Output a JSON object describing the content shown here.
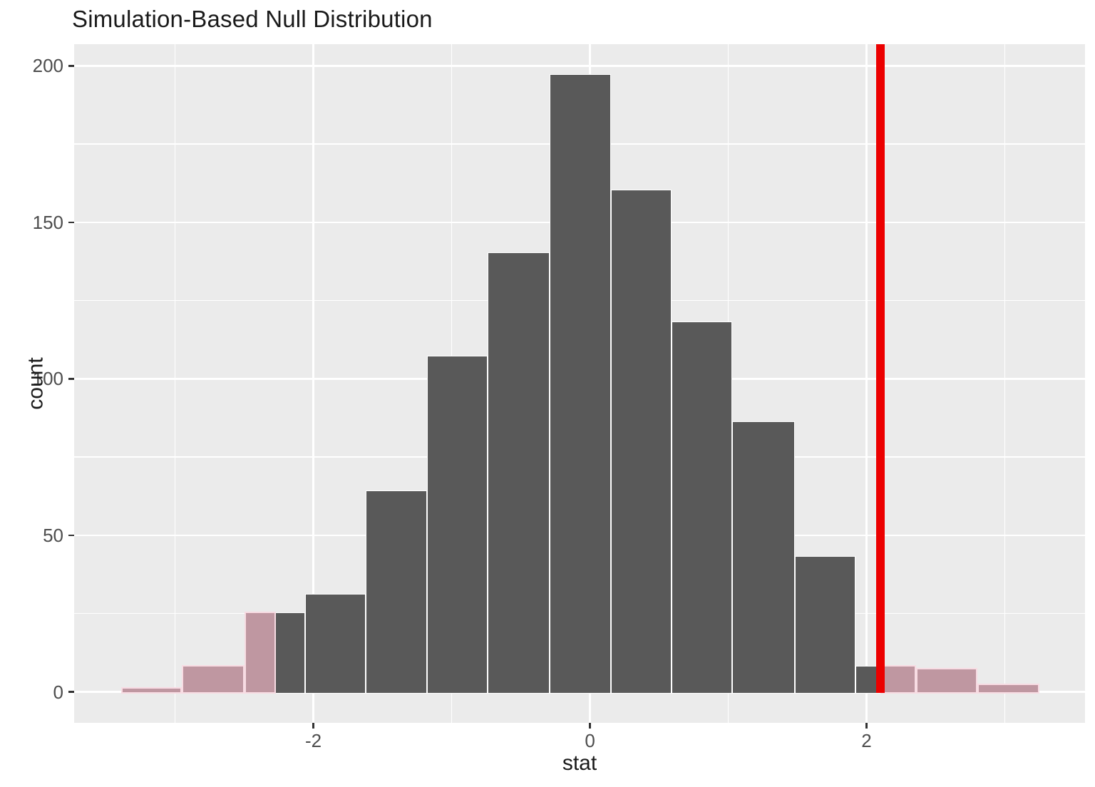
{
  "chart_data": {
    "type": "bar",
    "subtype": "histogram",
    "title": "Simulation-Based Null Distribution",
    "xlabel": "stat",
    "ylabel": "count",
    "x_ticks": [
      -2,
      0,
      2
    ],
    "x_tick_labels": [
      "-2",
      "0",
      "2"
    ],
    "x_minor_gridlines": [
      -3,
      -1,
      1,
      3
    ],
    "y_ticks": [
      0,
      50,
      100,
      150,
      200
    ],
    "y_tick_labels": [
      "0",
      "50",
      "100",
      "150",
      "200"
    ],
    "y_minor_gridlines": [
      25,
      75,
      125,
      175
    ],
    "xlim": [
      -3.73,
      3.58
    ],
    "ylim": [
      -9.9,
      206.9
    ],
    "grid": "on",
    "legend": "none",
    "bin_width": 0.442,
    "bins": [
      {
        "from": -3.39,
        "to": -2.95,
        "count": 1,
        "shade": "pink"
      },
      {
        "from": -2.95,
        "to": -2.5,
        "count": 8,
        "shade": "pink"
      },
      {
        "from": -2.5,
        "to": -2.06,
        "count": 25,
        "shade": "split-left",
        "split_at": -2.27
      },
      {
        "from": -2.06,
        "to": -1.62,
        "count": 31,
        "shade": "none"
      },
      {
        "from": -1.62,
        "to": -1.18,
        "count": 64,
        "shade": "none"
      },
      {
        "from": -1.18,
        "to": -0.74,
        "count": 107,
        "shade": "none"
      },
      {
        "from": -0.74,
        "to": -0.29,
        "count": 140,
        "shade": "none"
      },
      {
        "from": -0.29,
        "to": 0.15,
        "count": 197,
        "shade": "none"
      },
      {
        "from": 0.15,
        "to": 0.59,
        "count": 160,
        "shade": "none"
      },
      {
        "from": 0.59,
        "to": 1.03,
        "count": 118,
        "shade": "none"
      },
      {
        "from": 1.03,
        "to": 1.48,
        "count": 86,
        "shade": "none"
      },
      {
        "from": 1.48,
        "to": 1.92,
        "count": 43,
        "shade": "none"
      },
      {
        "from": 1.92,
        "to": 2.36,
        "count": 8,
        "shade": "split-right",
        "split_at": 2.1
      },
      {
        "from": 2.36,
        "to": 2.8,
        "count": 7,
        "shade": "pink"
      },
      {
        "from": 2.8,
        "to": 3.25,
        "count": 2,
        "shade": "pink"
      }
    ],
    "observed_stat": 2.1,
    "shade_direction": "two-sided",
    "two_sided_left_boundary": -2.27,
    "colors": {
      "bar_fill": "#595959",
      "bar_stroke": "#ffffff",
      "shade_fill": "#bf97a1",
      "shade_stroke": "#f8dce3",
      "observed_line": "#ec0000",
      "panel_bg": "#ebebeb",
      "gridline": "#ffffff",
      "tick_label": "#4d4d4d",
      "axis_title": "#1a1a1a",
      "title": "#1a1a1a"
    }
  }
}
